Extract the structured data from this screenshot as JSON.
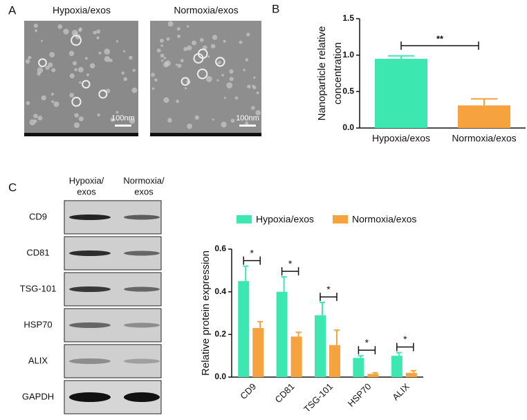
{
  "panel_labels": [
    "A",
    "B",
    "C"
  ],
  "tem": {
    "titles": [
      "Hypoxia/exos",
      "Normoxia/exos"
    ],
    "scale_bar": "100nm"
  },
  "western": {
    "columns": [
      "Hypoxia/",
      "exos",
      "Normoxia/",
      "exos"
    ],
    "rows": [
      "CD9",
      "CD81",
      "TSG-101",
      "HSP70",
      "ALIX",
      "GAPDH"
    ]
  },
  "chart_data": [
    {
      "type": "bar",
      "ylabel": [
        "Nanoparticle relative",
        "concentration"
      ],
      "categories": [
        "Hypoxia/exos",
        "Normoxia/exos"
      ],
      "series": [
        {
          "name": null,
          "colors": [
            "#3de8b0",
            "#f6a23f"
          ],
          "values": [
            0.95,
            0.31
          ],
          "errors": [
            0.04,
            0.09
          ]
        }
      ],
      "ylim": [
        0,
        1.5
      ],
      "yticks": [
        {
          "value": 0,
          "label": "0.0"
        },
        0.5,
        {
          "value": 1,
          "label": "1.0"
        },
        1.5
      ],
      "annotations": [
        "**"
      ]
    },
    {
      "type": "bar",
      "ylabel": [
        "Relative protein expression"
      ],
      "categories": [
        "CD9",
        "CD81",
        "TSG-101",
        "HSP70",
        "ALIX"
      ],
      "series": [
        {
          "name": "Hypoxia/exos",
          "color": "#3de8b0",
          "values": [
            0.45,
            0.4,
            0.29,
            0.09,
            0.1
          ],
          "errors": [
            0.07,
            0.07,
            0.06,
            0.01,
            0.015
          ]
        },
        {
          "name": "Normoxia/exos",
          "color": "#f6a23f",
          "values": [
            0.23,
            0.19,
            0.15,
            0.015,
            0.02
          ],
          "errors": [
            0.03,
            0.02,
            0.07,
            0.005,
            0.01
          ]
        }
      ],
      "ylim": [
        0,
        0.6
      ],
      "yticks": [
        {
          "value": 0,
          "label": "0.0"
        },
        0.2,
        0.4,
        0.6
      ],
      "annotations": [
        "*",
        "*",
        "*",
        "*",
        "*"
      ],
      "legend": "top"
    }
  ]
}
